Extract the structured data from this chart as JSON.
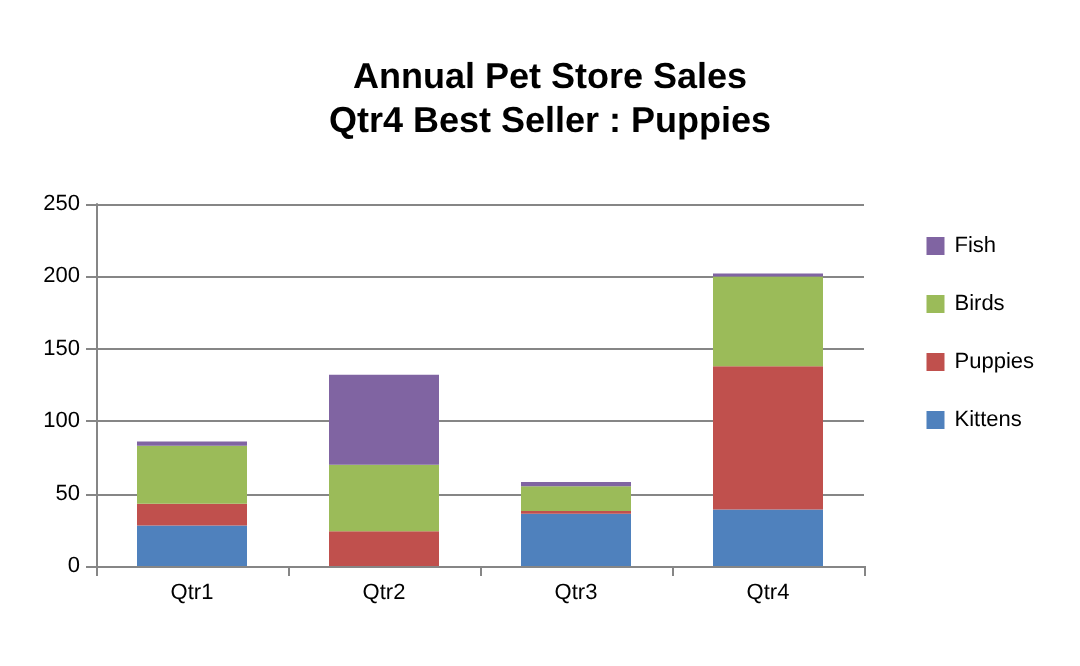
{
  "chart_data": {
    "type": "bar",
    "title": "Annual Pet Store Sales",
    "subtitle": "Qtr4 Best Seller : Puppies",
    "categories": [
      "Qtr1",
      "Qtr2",
      "Qtr3",
      "Qtr4"
    ],
    "stacked": true,
    "series": [
      {
        "name": "Kittens",
        "color": "#4f81bd",
        "values": [
          28,
          0,
          36,
          39
        ]
      },
      {
        "name": "Puppies",
        "color": "#c0504d",
        "values": [
          15,
          24,
          2,
          99
        ]
      },
      {
        "name": "Birds",
        "color": "#9bbb59",
        "values": [
          40,
          46,
          17,
          62
        ]
      },
      {
        "name": "Fish",
        "color": "#8064a2",
        "values": [
          3,
          62,
          3,
          2
        ]
      }
    ],
    "ylim": [
      0,
      250
    ],
    "yticks": [
      0,
      50,
      100,
      150,
      200,
      250
    ],
    "grid": "y",
    "legend": "right"
  }
}
